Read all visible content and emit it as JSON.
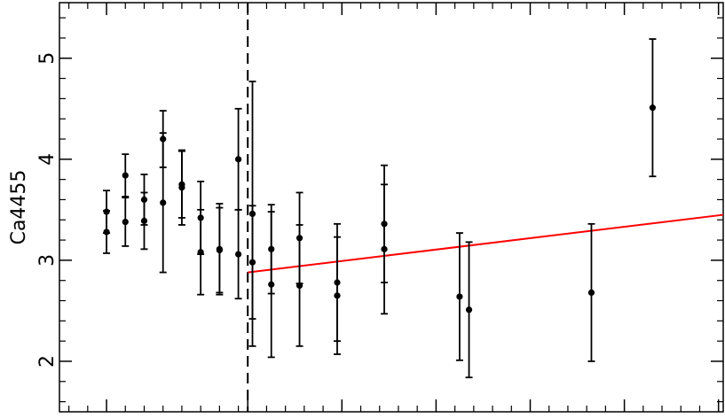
{
  "chart_data": {
    "type": "scatter",
    "title": "",
    "xlabel": "",
    "ylabel": "Ca4455",
    "ylim": [
      1.5,
      5.55
    ],
    "xlim": [
      -4,
      10.1
    ],
    "grid": false,
    "y_ticks": [
      {
        "value": 2,
        "label": "2"
      },
      {
        "value": 3,
        "label": "3"
      },
      {
        "value": 4,
        "label": "4"
      },
      {
        "value": 5,
        "label": "5"
      }
    ],
    "x_ticks_major": [
      -3,
      0,
      2,
      4,
      6,
      8,
      10
    ],
    "x_ticks_minor": [
      -3.8,
      -3.4,
      -2.6,
      -2.2,
      -1.8,
      -1.4,
      -1,
      -0.6,
      -0.2,
      0.4,
      0.8,
      1.2,
      1.6,
      2.4,
      2.8,
      3.2,
      3.6,
      4.4,
      4.8,
      5.2,
      5.6,
      6.4,
      6.8,
      7.2,
      7.6,
      8.4,
      8.8,
      9.2,
      9.6
    ],
    "series": [
      {
        "points": [
          {
            "x": -3.0,
            "y": 3.48,
            "err": 0.21
          },
          {
            "x": -3.0,
            "y": 3.28,
            "err": 0.21
          },
          {
            "x": -2.6,
            "y": 3.84,
            "err": 0.21
          },
          {
            "x": -2.6,
            "y": 3.38,
            "err": 0.24
          },
          {
            "x": -2.2,
            "y": 3.6,
            "err": 0.25
          },
          {
            "x": -2.2,
            "y": 3.39,
            "err": 0.28
          },
          {
            "x": -1.8,
            "y": 4.2,
            "err": 0.28
          },
          {
            "x": -1.8,
            "y": 3.57,
            "err": 0.69
          },
          {
            "x": -1.4,
            "y": 3.75,
            "err": 0.33
          },
          {
            "x": -1.4,
            "y": 3.72,
            "err": 0.37
          },
          {
            "x": -1.0,
            "y": 3.42,
            "err": 0.36
          },
          {
            "x": -1.0,
            "y": 3.08,
            "err": 0.42
          },
          {
            "x": -0.6,
            "y": 3.11,
            "err": 0.45
          },
          {
            "x": -0.6,
            "y": 3.1,
            "err": 0.42
          },
          {
            "x": -0.2,
            "y": 4.0,
            "err": 0.5
          },
          {
            "x": -0.2,
            "y": 3.06,
            "err": 0.44
          },
          {
            "x": 0.1,
            "y": 3.46,
            "err": 1.31
          },
          {
            "x": 0.1,
            "y": 2.98,
            "err": 0.56
          },
          {
            "x": 0.5,
            "y": 3.11,
            "err": 0.44
          },
          {
            "x": 0.5,
            "y": 2.76,
            "err": 0.72
          },
          {
            "x": 1.1,
            "y": 3.22,
            "err": 0.45
          },
          {
            "x": 1.1,
            "y": 2.75,
            "err": 0.6
          },
          {
            "x": 1.9,
            "y": 2.78,
            "err": 0.58
          },
          {
            "x": 1.9,
            "y": 2.65,
            "err": 0.58
          },
          {
            "x": 2.9,
            "y": 3.36,
            "err": 0.58
          },
          {
            "x": 2.9,
            "y": 3.11,
            "err": 0.64
          },
          {
            "x": 4.5,
            "y": 2.64,
            "err": 0.63
          },
          {
            "x": 4.7,
            "y": 2.51,
            "err": 0.67
          },
          {
            "x": 7.3,
            "y": 2.68,
            "err": 0.68
          },
          {
            "x": 8.6,
            "y": 4.51,
            "err": 0.68
          }
        ]
      }
    ],
    "fit_line": {
      "x": [
        0,
        10.1
      ],
      "y": [
        2.88,
        3.45
      ],
      "color": "#ff0000"
    },
    "vline": {
      "x": 0,
      "style": "dashed"
    }
  }
}
